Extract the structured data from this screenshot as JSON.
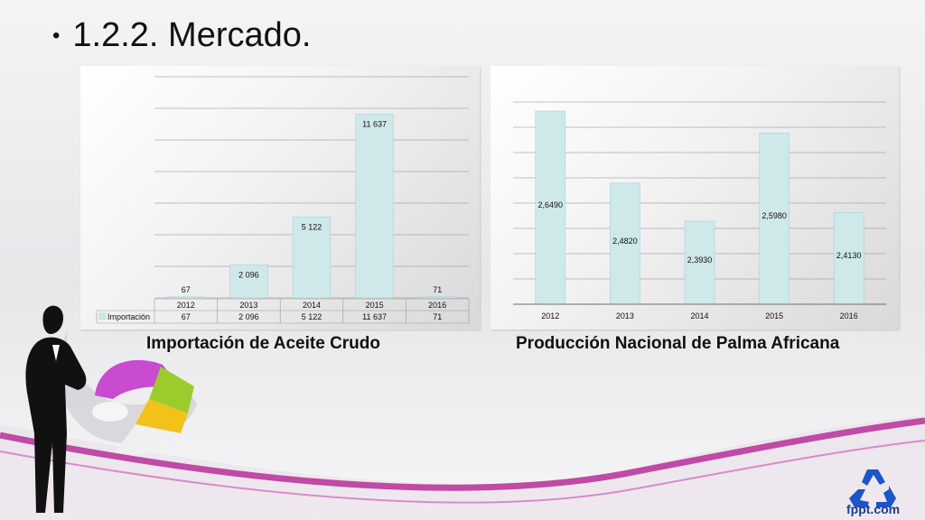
{
  "slide": {
    "bullet": "•",
    "title": "1.2.2. Mercado."
  },
  "logo": {
    "text": "fppt.com",
    "icon": "recycle-icon",
    "color": "#1b55c9"
  },
  "colors": {
    "bar": "#cfe8ea",
    "bar_stroke": "#9fcfd4",
    "accent": "#c04aa5"
  },
  "chart_data": [
    {
      "type": "bar",
      "title": "Importación de Aceite Crudo",
      "categories": [
        "2012",
        "2013",
        "2014",
        "2015",
        "2016"
      ],
      "series": [
        {
          "name": "Importación",
          "values": [
            67,
            2096,
            5122,
            11637,
            71
          ]
        }
      ],
      "data_labels": [
        "67",
        "2 096",
        "5 122",
        "11 637",
        "71"
      ],
      "table_values": [
        "67",
        "2 096",
        "5 122",
        "11 637",
        "71"
      ],
      "ylim": [
        0,
        14000
      ],
      "grid": true,
      "data_table": true
    },
    {
      "type": "bar",
      "title": "Producción Nacional de Palma Africana",
      "categories": [
        "2012",
        "2013",
        "2014",
        "2015",
        "2016"
      ],
      "series": [
        {
          "values": [
            2.649,
            2.482,
            2.393,
            2.598,
            2.413
          ]
        }
      ],
      "data_labels": [
        "2,6490",
        "2,4820",
        "2,3930",
        "2,5980",
        "2,4130"
      ],
      "ylim": [
        2.2,
        2.67
      ],
      "grid": true
    }
  ]
}
